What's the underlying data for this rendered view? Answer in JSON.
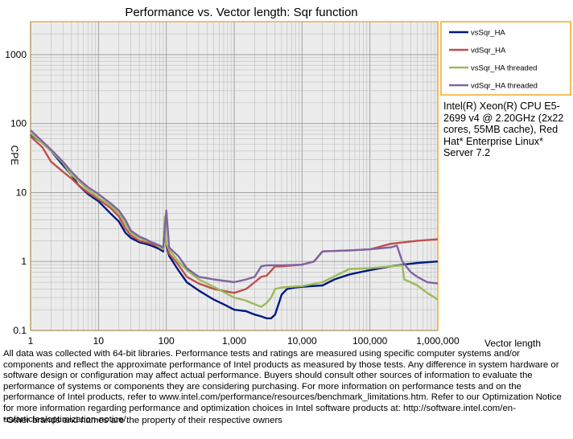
{
  "chart_data": {
    "type": "line",
    "title": "Performance vs. Vector length: Sqr function",
    "xlabel": "Vector length",
    "ylabel": "CPE",
    "x_scale": "log",
    "y_scale": "log",
    "xlim": [
      1,
      1000000
    ],
    "ylim": [
      0.1,
      3000
    ],
    "x_ticks": [
      1,
      10,
      100,
      1000,
      10000,
      100000,
      1000000
    ],
    "x_tick_labels": [
      "1",
      "10",
      "100",
      "1,000",
      "10,000",
      "100,000",
      "1,000,000"
    ],
    "y_ticks": [
      0.1,
      1,
      10,
      100,
      1000
    ],
    "y_tick_labels": [
      "0.1",
      "1",
      "10",
      "100",
      "1000"
    ],
    "grid": true,
    "legend_position": "right",
    "series": [
      {
        "name": "vsSqr_HA",
        "color": "#001a80",
        "points": [
          [
            1,
            70
          ],
          [
            1.5,
            52
          ],
          [
            2,
            40
          ],
          [
            3,
            25
          ],
          [
            4,
            18
          ],
          [
            5,
            13
          ],
          [
            7,
            9.5
          ],
          [
            10,
            7.5
          ],
          [
            15,
            5
          ],
          [
            20,
            3.8
          ],
          [
            25,
            2.6
          ],
          [
            30,
            2.2
          ],
          [
            40,
            1.9
          ],
          [
            50,
            1.8
          ],
          [
            60,
            1.7
          ],
          [
            70,
            1.6
          ],
          [
            80,
            1.5
          ],
          [
            90,
            1.4
          ],
          [
            95,
            3.5
          ],
          [
            100,
            1.7
          ],
          [
            110,
            1.2
          ],
          [
            150,
            0.75
          ],
          [
            200,
            0.5
          ],
          [
            300,
            0.38
          ],
          [
            500,
            0.28
          ],
          [
            700,
            0.24
          ],
          [
            1000,
            0.2
          ],
          [
            1500,
            0.19
          ],
          [
            2000,
            0.17
          ],
          [
            2500,
            0.16
          ],
          [
            3000,
            0.15
          ],
          [
            3500,
            0.15
          ],
          [
            4000,
            0.17
          ],
          [
            4500,
            0.24
          ],
          [
            5000,
            0.33
          ],
          [
            6000,
            0.4
          ],
          [
            8000,
            0.42
          ],
          [
            10000,
            0.43
          ],
          [
            20000,
            0.45
          ],
          [
            30000,
            0.55
          ],
          [
            50000,
            0.65
          ],
          [
            100000,
            0.75
          ],
          [
            200000,
            0.85
          ],
          [
            300000,
            0.9
          ],
          [
            500000,
            0.95
          ],
          [
            1000000,
            1.0
          ]
        ]
      },
      {
        "name": "vdSqr_HA",
        "color": "#c0504d",
        "points": [
          [
            1,
            65
          ],
          [
            1.5,
            45
          ],
          [
            2,
            28
          ],
          [
            3,
            20
          ],
          [
            4,
            16
          ],
          [
            5,
            13
          ],
          [
            7,
            10
          ],
          [
            10,
            8
          ],
          [
            15,
            6
          ],
          [
            20,
            4.5
          ],
          [
            25,
            3
          ],
          [
            30,
            2.4
          ],
          [
            40,
            2
          ],
          [
            50,
            1.9
          ],
          [
            60,
            1.8
          ],
          [
            70,
            1.7
          ],
          [
            80,
            1.6
          ],
          [
            90,
            1.5
          ],
          [
            95,
            4
          ],
          [
            100,
            1.8
          ],
          [
            110,
            1.3
          ],
          [
            150,
            0.9
          ],
          [
            200,
            0.6
          ],
          [
            300,
            0.48
          ],
          [
            500,
            0.4
          ],
          [
            1000,
            0.35
          ],
          [
            1500,
            0.4
          ],
          [
            2000,
            0.5
          ],
          [
            2500,
            0.6
          ],
          [
            3000,
            0.62
          ],
          [
            4000,
            0.85
          ],
          [
            5000,
            0.85
          ],
          [
            10000,
            0.9
          ],
          [
            15000,
            1.0
          ],
          [
            20000,
            1.4
          ],
          [
            50000,
            1.45
          ],
          [
            100000,
            1.5
          ],
          [
            200000,
            1.8
          ],
          [
            500000,
            2.0
          ],
          [
            1000000,
            2.1
          ]
        ]
      },
      {
        "name": "vsSqr_HA threaded",
        "color": "#9bbb59",
        "points": [
          [
            1,
            72
          ],
          [
            1.5,
            52
          ],
          [
            2,
            40
          ],
          [
            3,
            27
          ],
          [
            4,
            18
          ],
          [
            5,
            15
          ],
          [
            7,
            11
          ],
          [
            10,
            8.5
          ],
          [
            15,
            6.5
          ],
          [
            20,
            5
          ],
          [
            25,
            3.5
          ],
          [
            30,
            2.6
          ],
          [
            40,
            2.2
          ],
          [
            50,
            2
          ],
          [
            60,
            1.9
          ],
          [
            70,
            1.8
          ],
          [
            80,
            1.6
          ],
          [
            90,
            1.5
          ],
          [
            95,
            4.5
          ],
          [
            100,
            1.8
          ],
          [
            110,
            1.5
          ],
          [
            150,
            1.0
          ],
          [
            200,
            0.75
          ],
          [
            300,
            0.55
          ],
          [
            500,
            0.43
          ],
          [
            1000,
            0.3
          ],
          [
            1500,
            0.27
          ],
          [
            2000,
            0.24
          ],
          [
            2500,
            0.22
          ],
          [
            3000,
            0.25
          ],
          [
            3500,
            0.3
          ],
          [
            4000,
            0.4
          ],
          [
            5000,
            0.42
          ],
          [
            10000,
            0.44
          ],
          [
            20000,
            0.5
          ],
          [
            50000,
            0.78
          ],
          [
            100000,
            0.8
          ],
          [
            200000,
            0.85
          ],
          [
            300000,
            0.88
          ],
          [
            320000,
            0.55
          ],
          [
            500000,
            0.45
          ],
          [
            700000,
            0.35
          ],
          [
            1000000,
            0.28
          ]
        ]
      },
      {
        "name": "vdSqr_HA threaded",
        "color": "#8064a2",
        "points": [
          [
            1,
            80
          ],
          [
            1.5,
            55
          ],
          [
            2,
            42
          ],
          [
            3,
            28
          ],
          [
            4,
            20
          ],
          [
            5,
            16
          ],
          [
            7,
            12
          ],
          [
            10,
            9.5
          ],
          [
            15,
            7
          ],
          [
            20,
            5.5
          ],
          [
            25,
            4
          ],
          [
            30,
            2.8
          ],
          [
            40,
            2.3
          ],
          [
            50,
            2.1
          ],
          [
            60,
            1.9
          ],
          [
            70,
            1.8
          ],
          [
            80,
            1.7
          ],
          [
            90,
            1.6
          ],
          [
            100,
            5.5
          ],
          [
            110,
            1.6
          ],
          [
            150,
            1.2
          ],
          [
            200,
            0.8
          ],
          [
            300,
            0.6
          ],
          [
            500,
            0.55
          ],
          [
            1000,
            0.5
          ],
          [
            1500,
            0.55
          ],
          [
            2000,
            0.6
          ],
          [
            2500,
            0.85
          ],
          [
            3000,
            0.88
          ],
          [
            5000,
            0.88
          ],
          [
            10000,
            0.9
          ],
          [
            15000,
            1.0
          ],
          [
            20000,
            1.4
          ],
          [
            50000,
            1.45
          ],
          [
            100000,
            1.5
          ],
          [
            200000,
            1.6
          ],
          [
            250000,
            1.7
          ],
          [
            300000,
            1.0
          ],
          [
            400000,
            0.7
          ],
          [
            500000,
            0.6
          ],
          [
            700000,
            0.5
          ],
          [
            1000000,
            0.48
          ]
        ]
      }
    ]
  },
  "cpu_info": "Intel(R) Xeon(R) CPU E5-2699 v4 @ 2.20GHz (2x22 cores, 55MB cache), Red Hat* Enterprise Linux* Server 7.2",
  "disclaimer": "All data was collected with 64-bit libraries. Performance tests and ratings are measured using specific computer systems and/or components and reflect the approximate performance of Intel products as measured by those tests. Any difference in system hardware or software design or configuration may affect actual performance. Buyers should consult other sources of information to evaluate the performance of systems or components they are considering purchasing. For more information on performance tests and on the performance of Intel products, refer to www.intel.com/performance/resources/benchmark_limitations.htm. Refer to our Optimization Notice for more information regarding performance and optimization choices in Intel software products at: http://software.intel.com/en-us/articles/optimization-notice/.",
  "footnote": "*Other brands and names are the property of their respective owners"
}
